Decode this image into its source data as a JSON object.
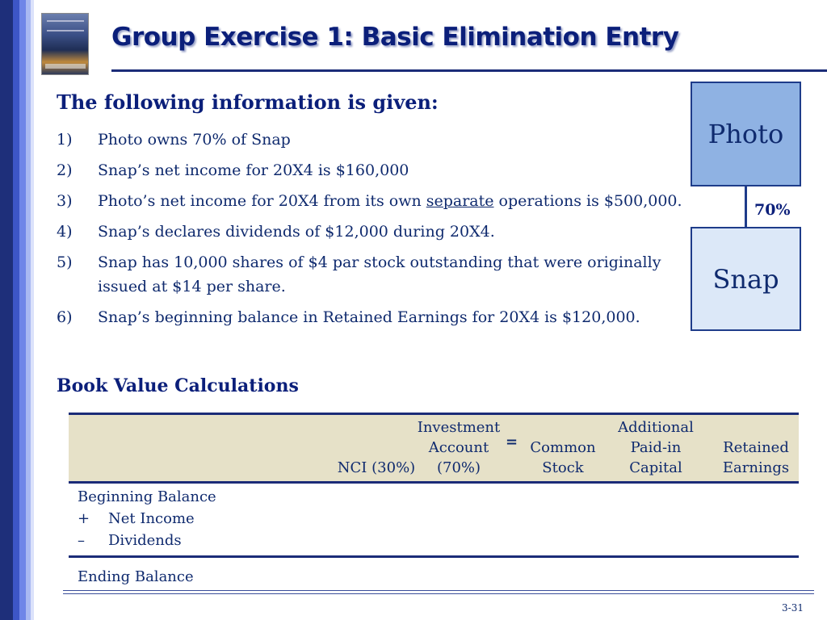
{
  "slide": {
    "title": "Group Exercise 1: Basic Elimination Entry",
    "page_number": "3-31"
  },
  "intro": {
    "lead": "The following information is given:",
    "items": [
      {
        "num": "1)",
        "text": "Photo owns 70% of Snap"
      },
      {
        "num": "2)",
        "text": "Snap’s net income for 20X4 is $160,000"
      },
      {
        "num": "3)",
        "pre": "Photo’s net income for 20X4 from its own ",
        "underlined": "separate",
        "post": " operations is $500,000."
      },
      {
        "num": "4)",
        "text": "Snap’s declares dividends of $12,000 during 20X4."
      },
      {
        "num": "5)",
        "text": "Snap has 10,000 shares of $4 par stock outstanding that were originally issued at $14 per share."
      },
      {
        "num": "6)",
        "text": "Snap’s beginning balance in Retained Earnings for 20X4 is $120,000."
      }
    ]
  },
  "org_chart": {
    "parent": "Photo",
    "subsidiary": "Snap",
    "ownership": "70%"
  },
  "book_value": {
    "title": "Book Value Calculations",
    "columns": {
      "nci": [
        "NCI (30%)"
      ],
      "investment": [
        "Investment",
        "Account",
        "(70%)"
      ],
      "equals": "=",
      "common": [
        "Common",
        "Stock"
      ],
      "apic": [
        "Additional",
        "Paid-in",
        "Capital"
      ],
      "retained": [
        "Retained",
        "Earnings"
      ]
    },
    "rows": {
      "beginning": "Beginning Balance",
      "plus_sign": "+",
      "net_income": "Net Income",
      "minus_sign": "–",
      "dividends": "Dividends",
      "ending": "Ending Balance"
    }
  }
}
